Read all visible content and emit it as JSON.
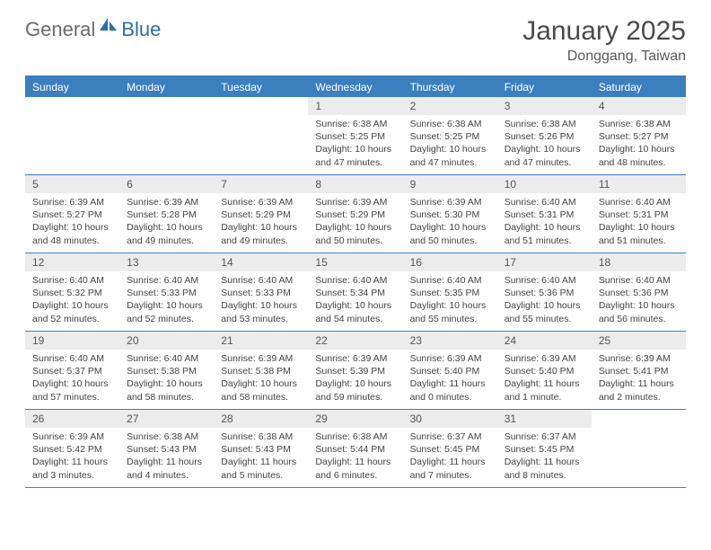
{
  "logo": {
    "part1": "General",
    "part2": "Blue"
  },
  "title": "January 2025",
  "subtitle": "Donggang, Taiwan",
  "colors": {
    "brand_blue": "#3b7fbf",
    "header_text": "#ffffff",
    "date_bg": "#ececec",
    "text": "#444444",
    "title_color": "#4a4a4a"
  },
  "day_names": [
    "Sunday",
    "Monday",
    "Tuesday",
    "Wednesday",
    "Thursday",
    "Friday",
    "Saturday"
  ],
  "weeks": [
    [
      {
        "n": "",
        "t": ""
      },
      {
        "n": "",
        "t": ""
      },
      {
        "n": "",
        "t": ""
      },
      {
        "n": "1",
        "t": "Sunrise: 6:38 AM\nSunset: 5:25 PM\nDaylight: 10 hours and 47 minutes."
      },
      {
        "n": "2",
        "t": "Sunrise: 6:38 AM\nSunset: 5:25 PM\nDaylight: 10 hours and 47 minutes."
      },
      {
        "n": "3",
        "t": "Sunrise: 6:38 AM\nSunset: 5:26 PM\nDaylight: 10 hours and 47 minutes."
      },
      {
        "n": "4",
        "t": "Sunrise: 6:38 AM\nSunset: 5:27 PM\nDaylight: 10 hours and 48 minutes."
      }
    ],
    [
      {
        "n": "5",
        "t": "Sunrise: 6:39 AM\nSunset: 5:27 PM\nDaylight: 10 hours and 48 minutes."
      },
      {
        "n": "6",
        "t": "Sunrise: 6:39 AM\nSunset: 5:28 PM\nDaylight: 10 hours and 49 minutes."
      },
      {
        "n": "7",
        "t": "Sunrise: 6:39 AM\nSunset: 5:29 PM\nDaylight: 10 hours and 49 minutes."
      },
      {
        "n": "8",
        "t": "Sunrise: 6:39 AM\nSunset: 5:29 PM\nDaylight: 10 hours and 50 minutes."
      },
      {
        "n": "9",
        "t": "Sunrise: 6:39 AM\nSunset: 5:30 PM\nDaylight: 10 hours and 50 minutes."
      },
      {
        "n": "10",
        "t": "Sunrise: 6:40 AM\nSunset: 5:31 PM\nDaylight: 10 hours and 51 minutes."
      },
      {
        "n": "11",
        "t": "Sunrise: 6:40 AM\nSunset: 5:31 PM\nDaylight: 10 hours and 51 minutes."
      }
    ],
    [
      {
        "n": "12",
        "t": "Sunrise: 6:40 AM\nSunset: 5:32 PM\nDaylight: 10 hours and 52 minutes."
      },
      {
        "n": "13",
        "t": "Sunrise: 6:40 AM\nSunset: 5:33 PM\nDaylight: 10 hours and 52 minutes."
      },
      {
        "n": "14",
        "t": "Sunrise: 6:40 AM\nSunset: 5:33 PM\nDaylight: 10 hours and 53 minutes."
      },
      {
        "n": "15",
        "t": "Sunrise: 6:40 AM\nSunset: 5:34 PM\nDaylight: 10 hours and 54 minutes."
      },
      {
        "n": "16",
        "t": "Sunrise: 6:40 AM\nSunset: 5:35 PM\nDaylight: 10 hours and 55 minutes."
      },
      {
        "n": "17",
        "t": "Sunrise: 6:40 AM\nSunset: 5:36 PM\nDaylight: 10 hours and 55 minutes."
      },
      {
        "n": "18",
        "t": "Sunrise: 6:40 AM\nSunset: 5:36 PM\nDaylight: 10 hours and 56 minutes."
      }
    ],
    [
      {
        "n": "19",
        "t": "Sunrise: 6:40 AM\nSunset: 5:37 PM\nDaylight: 10 hours and 57 minutes."
      },
      {
        "n": "20",
        "t": "Sunrise: 6:40 AM\nSunset: 5:38 PM\nDaylight: 10 hours and 58 minutes."
      },
      {
        "n": "21",
        "t": "Sunrise: 6:39 AM\nSunset: 5:38 PM\nDaylight: 10 hours and 58 minutes."
      },
      {
        "n": "22",
        "t": "Sunrise: 6:39 AM\nSunset: 5:39 PM\nDaylight: 10 hours and 59 minutes."
      },
      {
        "n": "23",
        "t": "Sunrise: 6:39 AM\nSunset: 5:40 PM\nDaylight: 11 hours and 0 minutes."
      },
      {
        "n": "24",
        "t": "Sunrise: 6:39 AM\nSunset: 5:40 PM\nDaylight: 11 hours and 1 minute."
      },
      {
        "n": "25",
        "t": "Sunrise: 6:39 AM\nSunset: 5:41 PM\nDaylight: 11 hours and 2 minutes."
      }
    ],
    [
      {
        "n": "26",
        "t": "Sunrise: 6:39 AM\nSunset: 5:42 PM\nDaylight: 11 hours and 3 minutes."
      },
      {
        "n": "27",
        "t": "Sunrise: 6:38 AM\nSunset: 5:43 PM\nDaylight: 11 hours and 4 minutes."
      },
      {
        "n": "28",
        "t": "Sunrise: 6:38 AM\nSunset: 5:43 PM\nDaylight: 11 hours and 5 minutes."
      },
      {
        "n": "29",
        "t": "Sunrise: 6:38 AM\nSunset: 5:44 PM\nDaylight: 11 hours and 6 minutes."
      },
      {
        "n": "30",
        "t": "Sunrise: 6:37 AM\nSunset: 5:45 PM\nDaylight: 11 hours and 7 minutes."
      },
      {
        "n": "31",
        "t": "Sunrise: 6:37 AM\nSunset: 5:45 PM\nDaylight: 11 hours and 8 minutes."
      },
      {
        "n": "",
        "t": ""
      }
    ]
  ]
}
